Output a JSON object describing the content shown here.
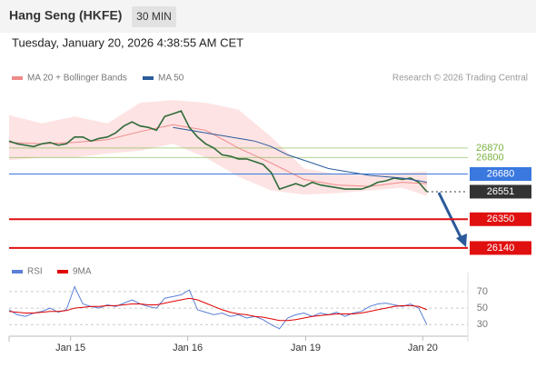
{
  "header": {
    "title": "Hang Seng (HKFE)",
    "timeframe": "30 MIN",
    "timestamp": "Tuesday, January 20, 2026 4:38:55 AM CET"
  },
  "chart_data": [
    {
      "type": "line",
      "credit": "Research © 2026 Trading Central",
      "xlim": [
        0,
        56
      ],
      "ylim": [
        26060,
        27320
      ],
      "band": {
        "name": "MA 20 + Bollinger Bands",
        "color": "#f08a8a",
        "fill": "#fde3e3",
        "x": [
          0,
          4,
          8,
          12,
          16,
          20,
          24,
          28,
          32,
          36,
          40,
          44,
          48,
          51
        ],
        "ma": [
          26910,
          26900,
          26910,
          26930,
          26990,
          27040,
          27000,
          26870,
          26760,
          26640,
          26600,
          26590,
          26620,
          26610
        ],
        "upper": [
          27110,
          27050,
          27100,
          27050,
          27200,
          27220,
          27200,
          27150,
          26950,
          26720,
          26680,
          26670,
          26690,
          26700
        ],
        "lower": [
          26780,
          26800,
          26800,
          26830,
          26850,
          26900,
          26800,
          26660,
          26560,
          26530,
          26540,
          26560,
          26580,
          26520
        ]
      },
      "series": [
        {
          "color": "#2f6b3a",
          "values": [
            26920,
            26900,
            26890,
            26880,
            26900,
            26910,
            26890,
            26900,
            26950,
            26950,
            26920,
            26940,
            26950,
            26980,
            27030,
            27060,
            27030,
            27020,
            27000,
            27100,
            27120,
            27140,
            27020,
            26950,
            26900,
            26870,
            26820,
            26810,
            26790,
            26790,
            26770,
            26750,
            26690,
            26570,
            26590,
            26610,
            26590,
            26620,
            26600,
            26590,
            26580,
            26570,
            26570,
            26570,
            26590,
            26620,
            26630,
            26650,
            26640,
            26650,
            26620,
            26551
          ]
        },
        {
          "name": "MA 50",
          "color": "#2a5a9a",
          "values": [
            null,
            null,
            null,
            null,
            null,
            null,
            null,
            null,
            null,
            null,
            null,
            null,
            null,
            null,
            null,
            null,
            null,
            null,
            null,
            null,
            27020,
            27010,
            27000,
            26990,
            26980,
            26970,
            26960,
            26950,
            26940,
            26930,
            26920,
            26900,
            26880,
            26850,
            26820,
            26800,
            26780,
            26760,
            26740,
            26720,
            26710,
            26700,
            26690,
            26680,
            26670,
            26665,
            26660,
            26655,
            26650,
            26640,
            26630,
            26620
          ]
        }
      ],
      "levels": [
        {
          "value": 26870,
          "color": "#7cb342",
          "boxed": false
        },
        {
          "value": 26800,
          "color": "#7cb342",
          "boxed": false
        },
        {
          "value": 26680,
          "color": "#3a78e0",
          "boxed": true
        },
        {
          "value": 26551,
          "color": "#333333",
          "boxed": true,
          "dotted": true
        },
        {
          "value": 26350,
          "color": "#e01010",
          "boxed": true
        },
        {
          "value": 26140,
          "color": "#e01010",
          "boxed": true
        }
      ]
    },
    {
      "type": "line",
      "xlim": [
        0,
        56
      ],
      "ylim": [
        16,
        82
      ],
      "yticks": [
        30,
        50,
        70
      ],
      "xticks": [
        {
          "value": 7.5,
          "label": "Jan 15"
        },
        {
          "value": 21.8,
          "label": "Jan 16"
        },
        {
          "value": 36.2,
          "label": "Jan 19"
        },
        {
          "value": 50.5,
          "label": "Jan 20"
        }
      ],
      "series": [
        {
          "name": "RSI",
          "color": "#5b7fd6",
          "values": [
            48,
            42,
            40,
            44,
            46,
            50,
            45,
            48,
            76,
            55,
            52,
            50,
            54,
            52,
            56,
            60,
            55,
            52,
            50,
            62,
            64,
            66,
            72,
            48,
            45,
            42,
            44,
            40,
            42,
            38,
            40,
            36,
            30,
            25,
            38,
            42,
            44,
            40,
            44,
            42,
            45,
            40,
            44,
            46,
            52,
            55,
            56,
            54,
            52,
            55,
            50,
            30
          ]
        },
        {
          "name": "9MA",
          "color": "#e00000",
          "values": [
            46,
            45,
            44,
            44,
            45,
            46,
            46,
            47,
            50,
            51,
            52,
            52,
            53,
            53,
            54,
            55,
            55,
            54,
            54,
            56,
            58,
            60,
            62,
            60,
            56,
            52,
            48,
            45,
            43,
            42,
            40,
            39,
            37,
            35,
            35,
            36,
            38,
            40,
            41,
            42,
            43,
            43,
            43,
            44,
            46,
            48,
            50,
            52,
            53,
            53,
            52,
            48
          ]
        }
      ]
    }
  ]
}
